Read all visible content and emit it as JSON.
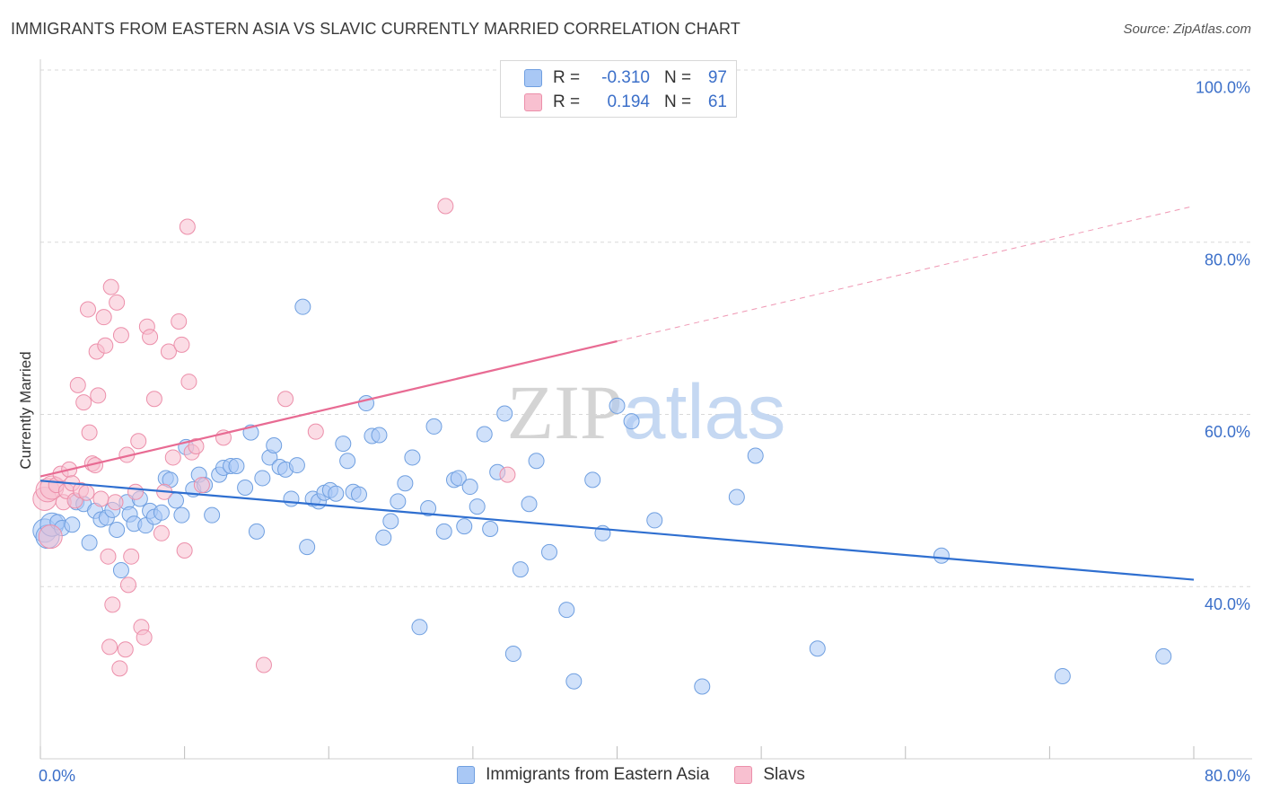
{
  "title": "IMMIGRANTS FROM EASTERN ASIA VS SLAVIC CURRENTLY MARRIED CORRELATION CHART",
  "source": "Source: ZipAtlas.com",
  "watermark": "ZIPatlas",
  "legend": {
    "rows": [
      {
        "r_label": "R =",
        "r_value": "-0.310",
        "n_label": "N =",
        "n_value": "97",
        "color": "#a9c8f5",
        "border": "#6f9fe0"
      },
      {
        "r_label": "R =",
        "r_value": "0.194",
        "n_label": "N =",
        "n_value": "61",
        "color": "#f8c0d0",
        "border": "#ec8faa"
      }
    ]
  },
  "bottom_legend": [
    {
      "label": "Immigrants from Eastern Asia",
      "color": "#a9c8f5",
      "border": "#6f9fe0"
    },
    {
      "label": "Slavs",
      "color": "#f8c0d0",
      "border": "#ec8faa"
    }
  ],
  "chart_data": {
    "type": "scatter",
    "title": "IMMIGRANTS FROM EASTERN ASIA VS SLAVIC CURRENTLY MARRIED CORRELATION CHART",
    "xlabel": "",
    "ylabel": "Currently Married",
    "xlim": [
      0,
      80
    ],
    "ylim": [
      20,
      100
    ],
    "x_tick_labels": [
      {
        "value": 0,
        "label": "0.0%"
      },
      {
        "value": 80,
        "label": "80.0%"
      }
    ],
    "y_tick_labels": [
      {
        "value": 100,
        "label": "100.0%"
      },
      {
        "value": 80,
        "label": "80.0%"
      },
      {
        "value": 60,
        "label": "60.0%"
      },
      {
        "value": 40,
        "label": "40.0%"
      }
    ],
    "series": [
      {
        "name": "Immigrants from Eastern Asia",
        "color": "#6f9fe0",
        "fill": "#a9c8f5",
        "trend": {
          "x0": 0,
          "y0": 52.3,
          "x1": 80,
          "y1": 40.8,
          "color": "#2f6fd0",
          "dashed_from": null
        },
        "points": [
          [
            0.3,
            46.5
          ],
          [
            0.5,
            45.8
          ],
          [
            0.8,
            47.2
          ],
          [
            1.2,
            47.5
          ],
          [
            1.5,
            46.8
          ],
          [
            2.2,
            47.2
          ],
          [
            2.5,
            49.8
          ],
          [
            3.0,
            49.6
          ],
          [
            3.4,
            45.1
          ],
          [
            3.8,
            48.8
          ],
          [
            4.2,
            47.8
          ],
          [
            4.6,
            48.0
          ],
          [
            5.0,
            48.9
          ],
          [
            5.3,
            46.6
          ],
          [
            5.6,
            41.9
          ],
          [
            6.0,
            49.8
          ],
          [
            6.2,
            48.4
          ],
          [
            6.5,
            47.3
          ],
          [
            6.9,
            50.2
          ],
          [
            7.3,
            47.1
          ],
          [
            7.6,
            48.8
          ],
          [
            7.9,
            48.1
          ],
          [
            8.4,
            48.6
          ],
          [
            8.7,
            52.6
          ],
          [
            9.0,
            52.4
          ],
          [
            9.4,
            50.0
          ],
          [
            9.8,
            48.3
          ],
          [
            10.1,
            56.2
          ],
          [
            10.6,
            51.3
          ],
          [
            11.0,
            53.0
          ],
          [
            11.4,
            51.8
          ],
          [
            11.9,
            48.3
          ],
          [
            12.4,
            53.0
          ],
          [
            12.7,
            53.8
          ],
          [
            13.2,
            54.0
          ],
          [
            13.6,
            54.0
          ],
          [
            14.2,
            51.5
          ],
          [
            14.6,
            57.9
          ],
          [
            15.0,
            46.4
          ],
          [
            15.4,
            52.6
          ],
          [
            15.9,
            55.0
          ],
          [
            16.2,
            56.4
          ],
          [
            16.6,
            53.9
          ],
          [
            17.0,
            53.6
          ],
          [
            17.4,
            50.2
          ],
          [
            17.8,
            54.1
          ],
          [
            18.2,
            72.5
          ],
          [
            18.5,
            44.6
          ],
          [
            18.9,
            50.2
          ],
          [
            19.3,
            49.9
          ],
          [
            19.7,
            50.9
          ],
          [
            20.1,
            51.2
          ],
          [
            20.5,
            50.8
          ],
          [
            21.0,
            56.6
          ],
          [
            21.3,
            54.6
          ],
          [
            21.7,
            51.0
          ],
          [
            22.1,
            50.7
          ],
          [
            22.6,
            61.3
          ],
          [
            23.0,
            57.5
          ],
          [
            23.5,
            57.6
          ],
          [
            23.8,
            45.7
          ],
          [
            24.3,
            47.6
          ],
          [
            24.8,
            49.9
          ],
          [
            25.3,
            52.0
          ],
          [
            25.8,
            55.0
          ],
          [
            26.3,
            35.3
          ],
          [
            26.9,
            49.1
          ],
          [
            27.3,
            58.6
          ],
          [
            28.0,
            46.4
          ],
          [
            28.7,
            52.4
          ],
          [
            29.0,
            52.6
          ],
          [
            29.4,
            47.0
          ],
          [
            29.8,
            51.6
          ],
          [
            30.3,
            49.3
          ],
          [
            30.8,
            57.7
          ],
          [
            31.2,
            46.7
          ],
          [
            31.7,
            53.3
          ],
          [
            32.2,
            60.1
          ],
          [
            32.8,
            32.2
          ],
          [
            33.3,
            42.0
          ],
          [
            33.9,
            49.6
          ],
          [
            34.4,
            54.6
          ],
          [
            35.3,
            44.0
          ],
          [
            36.5,
            37.3
          ],
          [
            37.0,
            29.0
          ],
          [
            38.3,
            52.4
          ],
          [
            39.0,
            46.2
          ],
          [
            40.0,
            61.0
          ],
          [
            41.0,
            59.2
          ],
          [
            42.6,
            47.7
          ],
          [
            45.9,
            28.4
          ],
          [
            48.3,
            50.4
          ],
          [
            49.6,
            55.2
          ],
          [
            53.9,
            32.8
          ],
          [
            62.5,
            43.6
          ],
          [
            70.9,
            29.6
          ],
          [
            77.9,
            31.9
          ]
        ]
      },
      {
        "name": "Slavs",
        "color": "#ec8faa",
        "fill": "#f8c0d0",
        "trend": {
          "x0": 0,
          "y0": 52.8,
          "x1": 80,
          "y1": 84.2,
          "color": "#e86b93",
          "dashed_from": 40
        },
        "points": [
          [
            0.3,
            50.2
          ],
          [
            0.5,
            51.2
          ],
          [
            0.8,
            51.5
          ],
          [
            1.1,
            51.8
          ],
          [
            1.4,
            53.1
          ],
          [
            1.6,
            49.8
          ],
          [
            1.8,
            51.1
          ],
          [
            2.0,
            53.6
          ],
          [
            2.2,
            52.0
          ],
          [
            2.4,
            50.0
          ],
          [
            2.6,
            63.4
          ],
          [
            2.8,
            51.2
          ],
          [
            3.0,
            61.4
          ],
          [
            3.2,
            50.9
          ],
          [
            3.3,
            72.2
          ],
          [
            3.4,
            57.9
          ],
          [
            3.6,
            54.3
          ],
          [
            3.8,
            54.1
          ],
          [
            3.9,
            67.3
          ],
          [
            4.0,
            62.2
          ],
          [
            4.2,
            50.2
          ],
          [
            4.4,
            71.3
          ],
          [
            4.5,
            68.0
          ],
          [
            4.7,
            43.5
          ],
          [
            4.8,
            33.0
          ],
          [
            4.9,
            74.8
          ],
          [
            5.0,
            37.9
          ],
          [
            5.2,
            49.8
          ],
          [
            5.3,
            73.0
          ],
          [
            5.5,
            30.5
          ],
          [
            5.6,
            69.2
          ],
          [
            5.9,
            32.7
          ],
          [
            6.0,
            55.3
          ],
          [
            6.1,
            40.2
          ],
          [
            6.3,
            43.5
          ],
          [
            6.6,
            51.0
          ],
          [
            6.8,
            56.9
          ],
          [
            7.0,
            35.3
          ],
          [
            7.2,
            34.1
          ],
          [
            7.4,
            70.2
          ],
          [
            7.6,
            69.0
          ],
          [
            7.9,
            61.8
          ],
          [
            8.4,
            46.2
          ],
          [
            8.6,
            51.0
          ],
          [
            8.9,
            67.3
          ],
          [
            9.2,
            55.0
          ],
          [
            9.6,
            70.8
          ],
          [
            9.8,
            68.1
          ],
          [
            10.0,
            44.2
          ],
          [
            10.2,
            81.8
          ],
          [
            10.3,
            63.8
          ],
          [
            10.5,
            55.6
          ],
          [
            10.8,
            56.3
          ],
          [
            11.2,
            51.8
          ],
          [
            12.7,
            57.3
          ],
          [
            15.5,
            30.9
          ],
          [
            17.0,
            61.8
          ],
          [
            19.1,
            58.0
          ],
          [
            28.1,
            84.2
          ],
          [
            32.4,
            53.0
          ],
          [
            0.7,
            45.8
          ]
        ]
      }
    ]
  }
}
